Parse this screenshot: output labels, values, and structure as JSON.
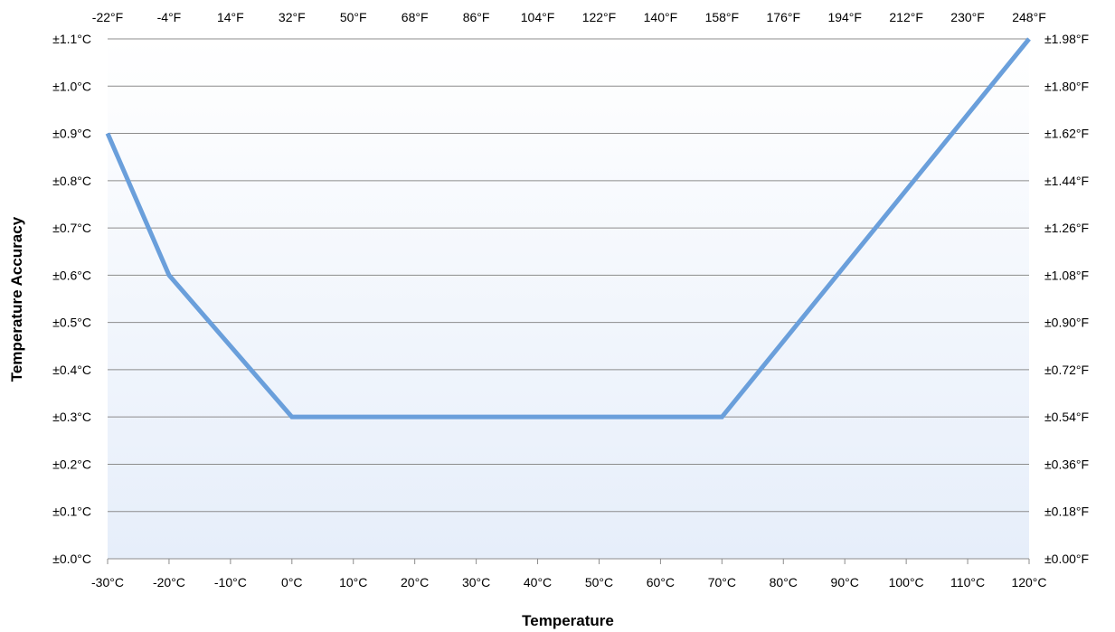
{
  "chart_data": {
    "type": "line",
    "xlabel": "Temperature",
    "ylabel": "Temperature Accuracy",
    "x_unit": "°C",
    "xlim": [
      -30,
      120
    ],
    "ylim": [
      0,
      1.1
    ],
    "grid": true,
    "legend": "none",
    "x": [
      -30,
      -20,
      0,
      70,
      120
    ],
    "series": [
      {
        "values": [
          0.9,
          0.6,
          0.3,
          0.3,
          1.1
        ]
      }
    ],
    "x_ticks_bottom": [
      "-30°C",
      "-20°C",
      "-10°C",
      "0°C",
      "10°C",
      "20°C",
      "30°C",
      "40°C",
      "50°C",
      "60°C",
      "70°C",
      "80°C",
      "90°C",
      "100°C",
      "110°C",
      "120°C"
    ],
    "x_ticks_top": [
      "-22°F",
      "-4°F",
      "14°F",
      "32°F",
      "50°F",
      "68°F",
      "86°F",
      "104°F",
      "122°F",
      "140°F",
      "158°F",
      "176°F",
      "194°F",
      "212°F",
      "230°F",
      "248°F"
    ],
    "y_ticks_left": [
      "±0.0°C",
      "±0.1°C",
      "±0.2°C",
      "±0.3°C",
      "±0.4°C",
      "±0.5°C",
      "±0.6°C",
      "±0.7°C",
      "±0.8°C",
      "±0.9°C",
      "±1.0°C",
      "±1.1°C"
    ],
    "y_ticks_right": [
      "±0.00°F",
      "±0.18°F",
      "±0.36°F",
      "±0.54°F",
      "±0.72°F",
      "±0.90°F",
      "±1.08°F",
      "±1.26°F",
      "±1.44°F",
      "±1.62°F",
      "±1.80°F",
      "±1.98°F"
    ],
    "colors": {
      "line": "#6A9FDB",
      "grid": "#8C8C8C",
      "plot_bg_top": "#FFFFFF",
      "plot_bg_bottom": "#E6EEFA"
    }
  }
}
